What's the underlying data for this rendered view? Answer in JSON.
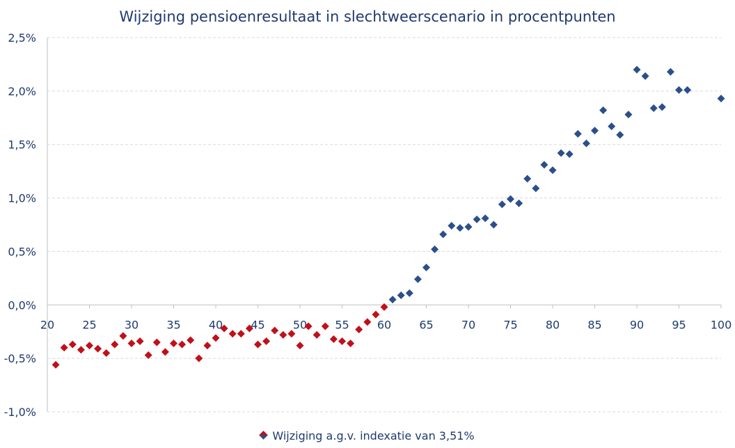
{
  "chart_data": {
    "type": "scatter",
    "title": "Wijziging pensioenresultaat in slechtweerscenario in procentpunten",
    "xlabel": "",
    "ylabel": "",
    "xlim": [
      20,
      100
    ],
    "ylim": [
      -1.0,
      2.5
    ],
    "x_ticks": [
      20,
      25,
      30,
      35,
      40,
      45,
      50,
      55,
      60,
      65,
      70,
      75,
      80,
      85,
      90,
      95,
      100
    ],
    "y_ticks": [
      "2,5%",
      "2,0%",
      "1,5%",
      "1,0%",
      "0,5%",
      "0,0%",
      "-0,5%",
      "-1,0%"
    ],
    "y_tick_values": [
      2.5,
      2.0,
      1.5,
      1.0,
      0.5,
      0.0,
      -0.5,
      -1.0
    ],
    "grid": true,
    "legend_position": "bottom",
    "colors": {
      "negative": "#c0101a",
      "positive": "#2b4f8a",
      "axis_text": "#1f3a6e",
      "grid": "#d9d9d9"
    },
    "series": [
      {
        "name": "Wijziging a.g.v. indexatie van 3,51%",
        "x": [
          21,
          22,
          23,
          24,
          25,
          26,
          27,
          28,
          29,
          30,
          31,
          32,
          33,
          34,
          35,
          36,
          37,
          38,
          39,
          40,
          41,
          42,
          43,
          44,
          45,
          46,
          47,
          48,
          49,
          50,
          51,
          52,
          53,
          54,
          55,
          56,
          57,
          58,
          59,
          60,
          61,
          62,
          63,
          64,
          65,
          66,
          67,
          68,
          69,
          70,
          71,
          72,
          73,
          74,
          75,
          76,
          77,
          78,
          79,
          80,
          81,
          82,
          83,
          84,
          85,
          86,
          87,
          88,
          89,
          90,
          91,
          92,
          93,
          94,
          95,
          96,
          100
        ],
        "y": [
          -0.56,
          -0.4,
          -0.37,
          -0.42,
          -0.38,
          -0.41,
          -0.45,
          -0.37,
          -0.29,
          -0.36,
          -0.34,
          -0.47,
          -0.35,
          -0.44,
          -0.36,
          -0.37,
          -0.33,
          -0.5,
          -0.38,
          -0.31,
          -0.22,
          -0.27,
          -0.27,
          -0.22,
          -0.37,
          -0.34,
          -0.24,
          -0.28,
          -0.27,
          -0.38,
          -0.2,
          -0.28,
          -0.2,
          -0.32,
          -0.34,
          -0.36,
          -0.23,
          -0.16,
          -0.09,
          -0.02,
          0.05,
          0.09,
          0.11,
          0.24,
          0.35,
          0.52,
          0.66,
          0.74,
          0.72,
          0.73,
          0.8,
          0.81,
          0.75,
          0.94,
          0.99,
          0.95,
          1.18,
          1.09,
          1.31,
          1.26,
          1.42,
          1.41,
          1.6,
          1.51,
          1.63,
          1.82,
          1.67,
          1.59,
          1.78,
          2.2,
          2.14,
          1.84,
          1.85,
          2.18,
          2.01,
          2.01,
          1.93
        ]
      }
    ]
  }
}
